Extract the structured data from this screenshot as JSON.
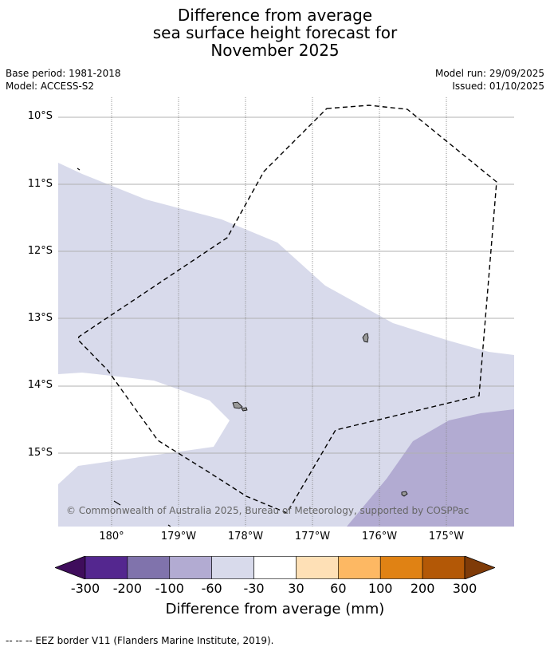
{
  "title": {
    "line1": "Difference from average",
    "line2": "sea surface height forecast for",
    "line3": "November 2025"
  },
  "meta": {
    "base_period": "Base period: 1981-2018",
    "model": "Model: ACCESS-S2",
    "model_run": "Model run: 29/09/2025",
    "issued": "Issued: 01/10/2025"
  },
  "lat_labels": [
    "10°S",
    "11°S",
    "12°S",
    "13°S",
    "14°S",
    "15°S"
  ],
  "lon_labels": [
    "180°",
    "179°W",
    "178°W",
    "177°W",
    "176°W",
    "175°W"
  ],
  "copyright": "© Commonwealth of Australia 2025, Bureau of Meteorology, supported by COSPPac",
  "colorbar": {
    "title": "Difference from average (mm)",
    "ticks": [
      "-300",
      "-200",
      "-100",
      "-60",
      "-30",
      "30",
      "60",
      "100",
      "200",
      "300"
    ],
    "colors": [
      "#3f0d5c",
      "#54278f",
      "#8073ac",
      "#b2abd2",
      "#d8daeb",
      "#ffffff",
      "#fee0b6",
      "#fdb863",
      "#e08214",
      "#b35806",
      "#7f3b08"
    ]
  },
  "footnote": "--  --  -- EEZ border V11 (Flanders Marine Institute, 2019).",
  "legend_colors": {
    "band_-60_-30": "#d8daeb",
    "band_-100_-60": "#b2abd2"
  }
}
